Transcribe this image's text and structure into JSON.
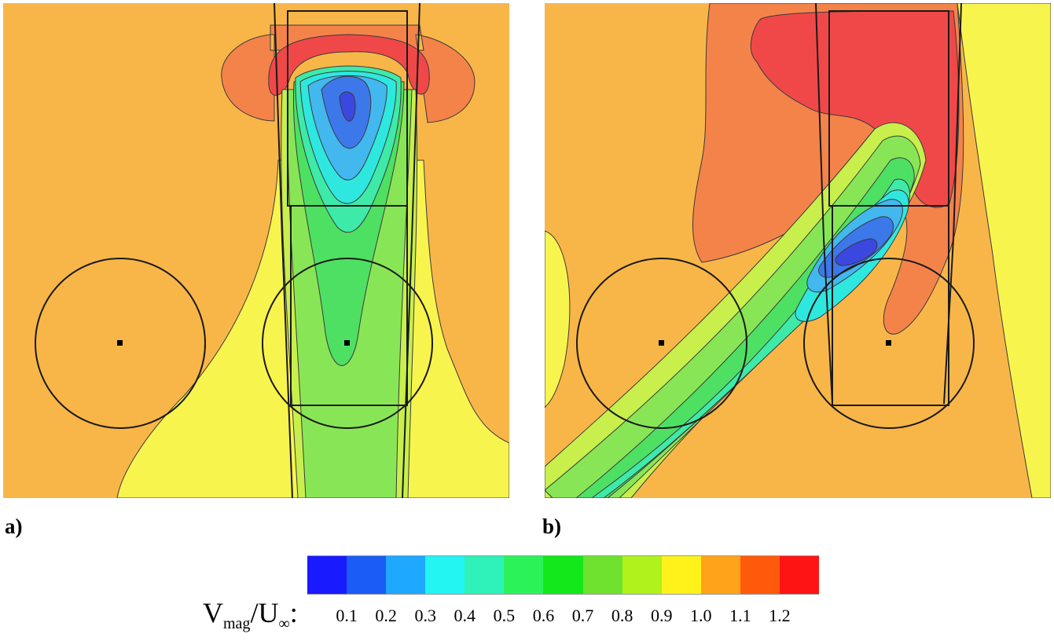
{
  "panels": [
    {
      "label": "a)"
    },
    {
      "label": "b)"
    }
  ],
  "colorbar": {
    "title_main": "V",
    "title_sub1": "mag",
    "title_mid": "/U",
    "title_sub2": "∞",
    "title_end": ":",
    "colors": [
      "#1a1aff",
      "#1a5cf5",
      "#1ea8ff",
      "#22f5f2",
      "#2ef2b8",
      "#2cf25a",
      "#12e81a",
      "#6ee22e",
      "#b0f21c",
      "#fff21a",
      "#ffa31a",
      "#ff5a0c",
      "#ff1414"
    ],
    "ticks": [
      "0.1",
      "0.2",
      "0.3",
      "0.4",
      "0.5",
      "0.6",
      "0.7",
      "0.8",
      "0.9",
      "1.0",
      "1.1",
      "1.2"
    ]
  },
  "field_colors": {
    "background": "#f9b648",
    "yellow": "#f8f44e",
    "yellow_green": "#c8ef4c",
    "light_green": "#88e656",
    "green": "#4ee063",
    "teal": "#3eeaa8",
    "cyan": "#2ee8e0",
    "light_blue": "#42b8ee",
    "blue": "#3c78ea",
    "dark_blue": "#3a48e0",
    "orange": "#f4834a",
    "red": "#f04848"
  }
}
